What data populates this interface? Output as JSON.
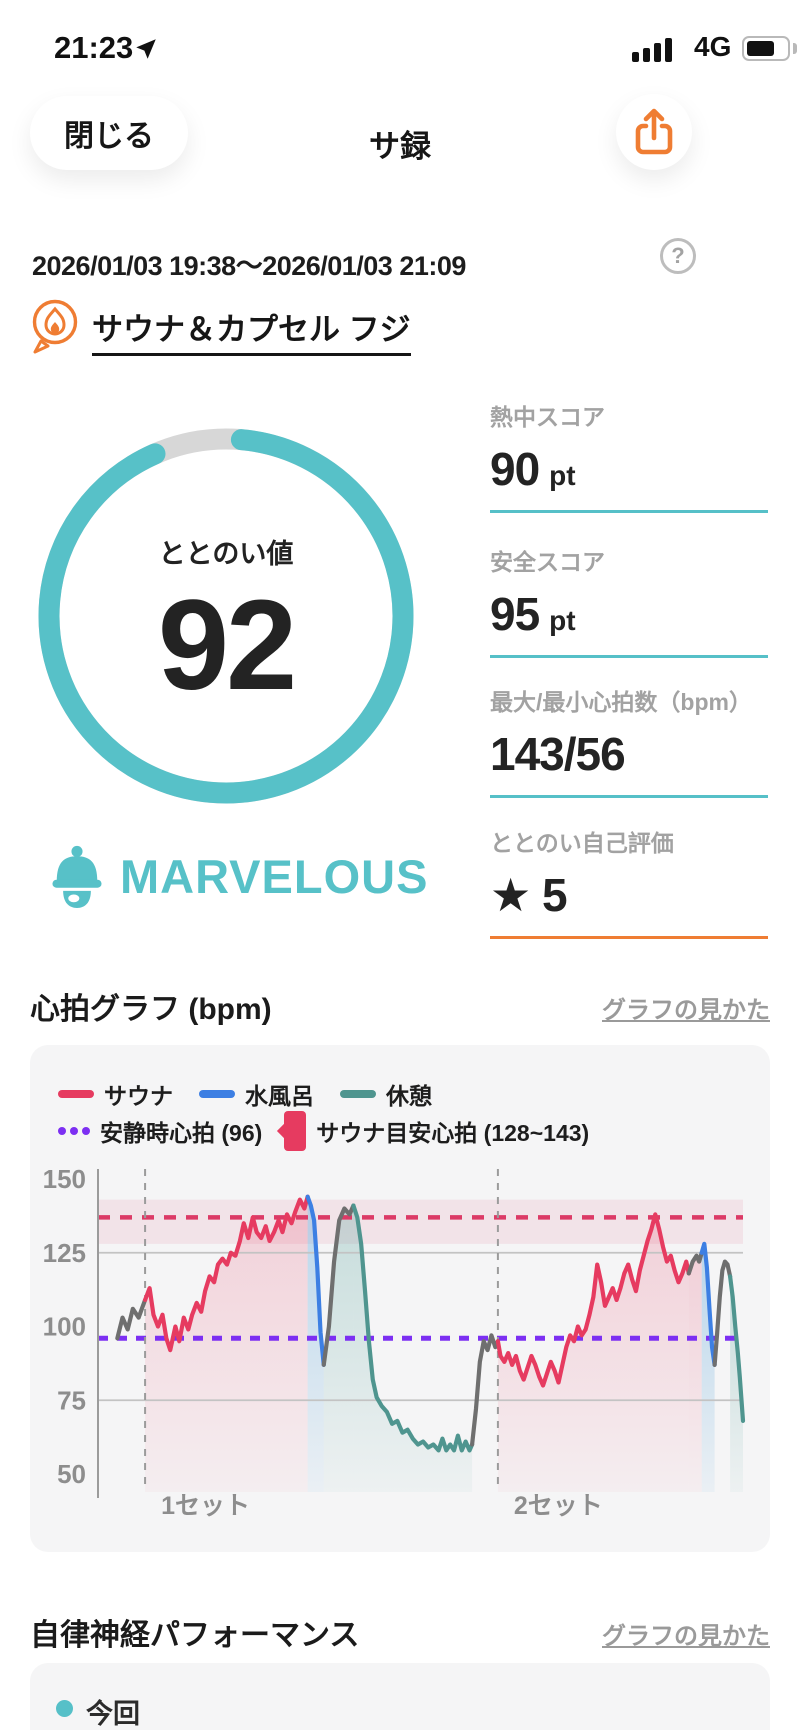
{
  "status_bar": {
    "time": "21:23",
    "network": "4G"
  },
  "nav": {
    "close_label": "閉じる",
    "title": "サ録"
  },
  "session": {
    "datetime_range": "2026/01/03 19:38～2026/01/03 21:09",
    "venue_name": "サウナ＆カプセル フジ"
  },
  "gauge": {
    "label": "ととのい値",
    "value": "92",
    "rating": "MARVELOUS"
  },
  "stats": [
    {
      "label": "熱中スコア",
      "value": "90",
      "unit": "pt",
      "underline": "teal"
    },
    {
      "label": "安全スコア",
      "value": "95",
      "unit": "pt",
      "underline": "teal"
    },
    {
      "label": "最大/最小心拍数（bpm）",
      "value": "143/56",
      "unit": "",
      "underline": "teal"
    },
    {
      "label": "ととのい自己評価",
      "value": "★ 5",
      "unit": "",
      "underline": "orange"
    }
  ],
  "hr_section": {
    "title": "心拍グラフ (bpm)",
    "help_link": "グラフの見かた"
  },
  "ans_section": {
    "title": "自律神経パフォーマンス",
    "help_link": "グラフの見かた",
    "legend_current": "今回"
  },
  "colors": {
    "teal": "#56c0c8",
    "orange": "#ef7d33",
    "sauna_red": "#e63b60",
    "cold_blue": "#3d7fe3",
    "rest_teal": "#4f958f",
    "resting_purple": "#7c2ff2",
    "gray_line": "#6f6f6f"
  },
  "chart_data": {
    "type": "line",
    "title": "心拍グラフ (bpm)",
    "ylabel": "bpm",
    "ylim": [
      50,
      150
    ],
    "yticks": [
      150,
      125,
      100,
      75,
      50
    ],
    "gridlines_solid": [
      125,
      75
    ],
    "resting_hr": 96,
    "sauna_target_range": [
      128,
      143
    ],
    "sauna_target_line": 137,
    "set_markers": [
      {
        "label": "1セット",
        "x_pct": 7.3
      },
      {
        "label": "2セット",
        "x_pct": 62
      }
    ],
    "legend": [
      {
        "label": "サウナ",
        "color": "#e63b60",
        "type": "line"
      },
      {
        "label": "水風呂",
        "color": "#3d7fe3",
        "type": "line"
      },
      {
        "label": "休憩",
        "color": "#4f958f",
        "type": "line"
      },
      {
        "label": "安静時心拍 (96)",
        "color": "#7c2ff2",
        "type": "dotted-line"
      },
      {
        "label": "サウナ目安心拍 (128~143)",
        "color": "#e63b60",
        "type": "band"
      }
    ],
    "segments": [
      {
        "phase": "transition",
        "color": "#6f6f6f",
        "fill": "none",
        "points": [
          [
            3,
            96
          ],
          [
            3.8,
            103
          ],
          [
            4.6,
            99
          ],
          [
            5.4,
            106
          ],
          [
            6.3,
            103
          ],
          [
            7.3,
            109
          ]
        ]
      },
      {
        "phase": "sauna",
        "color": "#e63b60",
        "fill": "sauna",
        "points": [
          [
            7.3,
            109
          ],
          [
            8,
            113
          ],
          [
            8.6,
            104
          ],
          [
            9.3,
            100
          ],
          [
            10,
            104
          ],
          [
            10.6,
            96
          ],
          [
            11.2,
            92
          ],
          [
            12,
            100
          ],
          [
            12.6,
            95
          ],
          [
            13.3,
            103
          ],
          [
            14,
            99
          ],
          [
            14.6,
            104
          ],
          [
            15.3,
            108
          ],
          [
            16,
            105
          ],
          [
            16.6,
            112
          ],
          [
            17.3,
            117
          ],
          [
            18,
            115
          ],
          [
            18.6,
            121
          ],
          [
            19.3,
            123
          ],
          [
            20,
            121
          ],
          [
            20.6,
            125
          ],
          [
            21.3,
            124
          ],
          [
            22,
            129
          ],
          [
            22.6,
            135
          ],
          [
            23.3,
            130
          ],
          [
            24,
            137
          ],
          [
            24.6,
            132
          ],
          [
            25.3,
            130
          ],
          [
            26,
            134
          ],
          [
            26.6,
            129
          ],
          [
            27.3,
            132
          ],
          [
            28,
            136
          ],
          [
            28.6,
            132
          ],
          [
            29.3,
            138
          ],
          [
            30,
            135
          ],
          [
            30.6,
            139
          ],
          [
            31.3,
            143
          ],
          [
            32,
            140
          ],
          [
            32.5,
            144
          ]
        ]
      },
      {
        "phase": "cold",
        "color": "#3d7fe3",
        "fill": "cold",
        "points": [
          [
            32.5,
            144
          ],
          [
            33,
            141
          ],
          [
            33.5,
            136
          ],
          [
            34,
            120
          ],
          [
            34.5,
            98
          ],
          [
            35,
            87
          ]
        ]
      },
      {
        "phase": "transition",
        "color": "#6f6f6f",
        "fill": "rest",
        "points": [
          [
            35,
            87
          ],
          [
            35.8,
            100
          ],
          [
            36.6,
            122
          ],
          [
            37.4,
            136
          ],
          [
            38.2,
            140
          ],
          [
            39,
            138
          ],
          [
            39.6,
            141
          ]
        ]
      },
      {
        "phase": "rest",
        "color": "#4f958f",
        "fill": "rest",
        "points": [
          [
            39.6,
            141
          ],
          [
            40.2,
            137
          ],
          [
            40.8,
            128
          ],
          [
            41.4,
            112
          ],
          [
            42,
            95
          ],
          [
            42.6,
            82
          ],
          [
            43.2,
            76
          ],
          [
            44,
            73
          ],
          [
            44.8,
            71
          ],
          [
            45.6,
            67
          ],
          [
            46.4,
            68
          ],
          [
            47.2,
            64
          ],
          [
            48,
            65
          ],
          [
            48.8,
            62
          ],
          [
            49.6,
            60
          ],
          [
            50.4,
            61
          ],
          [
            51.2,
            59
          ],
          [
            52,
            60
          ],
          [
            52.8,
            58
          ],
          [
            53.4,
            62
          ],
          [
            54,
            58
          ],
          [
            54.6,
            60
          ],
          [
            55.2,
            58
          ],
          [
            55.8,
            63
          ],
          [
            56.4,
            58
          ],
          [
            57,
            61
          ],
          [
            57.6,
            58
          ],
          [
            58,
            60
          ]
        ]
      },
      {
        "phase": "transition",
        "color": "#6f6f6f",
        "fill": "none",
        "points": [
          [
            58,
            60
          ],
          [
            58.6,
            72
          ],
          [
            59.2,
            88
          ],
          [
            59.8,
            95
          ],
          [
            60.4,
            92
          ],
          [
            61,
            97
          ],
          [
            61.6,
            93
          ],
          [
            62,
            95
          ]
        ]
      },
      {
        "phase": "sauna",
        "color": "#e63b60",
        "fill": "sauna",
        "points": [
          [
            62,
            95
          ],
          [
            62.4,
            90
          ],
          [
            63,
            88
          ],
          [
            63.6,
            91
          ],
          [
            64.2,
            87
          ],
          [
            64.8,
            90
          ],
          [
            65.4,
            85
          ],
          [
            66,
            82
          ],
          [
            66.6,
            86
          ],
          [
            67.2,
            90
          ],
          [
            67.8,
            87
          ],
          [
            68.4,
            83
          ],
          [
            69,
            80
          ],
          [
            69.6,
            84
          ],
          [
            70.2,
            88
          ],
          [
            70.8,
            85
          ],
          [
            71.4,
            81
          ],
          [
            72,
            87
          ],
          [
            72.6,
            93
          ],
          [
            73.2,
            97
          ],
          [
            73.8,
            95
          ],
          [
            74.4,
            100
          ],
          [
            75,
            97
          ],
          [
            75.6,
            99
          ],
          [
            76.2,
            104
          ],
          [
            76.8,
            110
          ],
          [
            77.4,
            121
          ],
          [
            78,
            115
          ],
          [
            78.6,
            107
          ],
          [
            79.2,
            110
          ],
          [
            79.8,
            113
          ],
          [
            80.4,
            109
          ],
          [
            81,
            113
          ],
          [
            81.6,
            118
          ],
          [
            82.2,
            121
          ],
          [
            82.8,
            116
          ],
          [
            83.4,
            112
          ],
          [
            84,
            119
          ],
          [
            84.6,
            124
          ],
          [
            85.2,
            129
          ],
          [
            85.8,
            133
          ],
          [
            86.4,
            138
          ],
          [
            87,
            133
          ],
          [
            87.6,
            127
          ],
          [
            88.2,
            122
          ],
          [
            88.8,
            124
          ],
          [
            89.4,
            119
          ],
          [
            90,
            115
          ],
          [
            90.6,
            118
          ],
          [
            91.2,
            122
          ],
          [
            91.6,
            118
          ]
        ]
      },
      {
        "phase": "transition",
        "color": "#6f6f6f",
        "fill": "sauna",
        "points": [
          [
            91.6,
            118
          ],
          [
            92.2,
            122
          ],
          [
            92.8,
            124
          ],
          [
            93.2,
            122
          ],
          [
            93.6,
            125
          ]
        ]
      },
      {
        "phase": "cold",
        "color": "#3d7fe3",
        "fill": "cold",
        "points": [
          [
            93.6,
            125
          ],
          [
            94,
            128
          ],
          [
            94.4,
            120
          ],
          [
            94.8,
            106
          ],
          [
            95.2,
            93
          ],
          [
            95.6,
            87
          ]
        ]
      },
      {
        "phase": "transition",
        "color": "#6f6f6f",
        "fill": "none",
        "points": [
          [
            95.6,
            87
          ],
          [
            96,
            98
          ],
          [
            96.4,
            110
          ],
          [
            96.8,
            119
          ],
          [
            97.2,
            122
          ],
          [
            97.6,
            121
          ],
          [
            98,
            117
          ]
        ]
      },
      {
        "phase": "rest",
        "color": "#4f958f",
        "fill": "rest",
        "points": [
          [
            98,
            117
          ],
          [
            98.4,
            110
          ],
          [
            98.8,
            100
          ],
          [
            99.2,
            91
          ],
          [
            99.5,
            83
          ],
          [
            99.8,
            74
          ],
          [
            100,
            68
          ]
        ]
      }
    ]
  }
}
